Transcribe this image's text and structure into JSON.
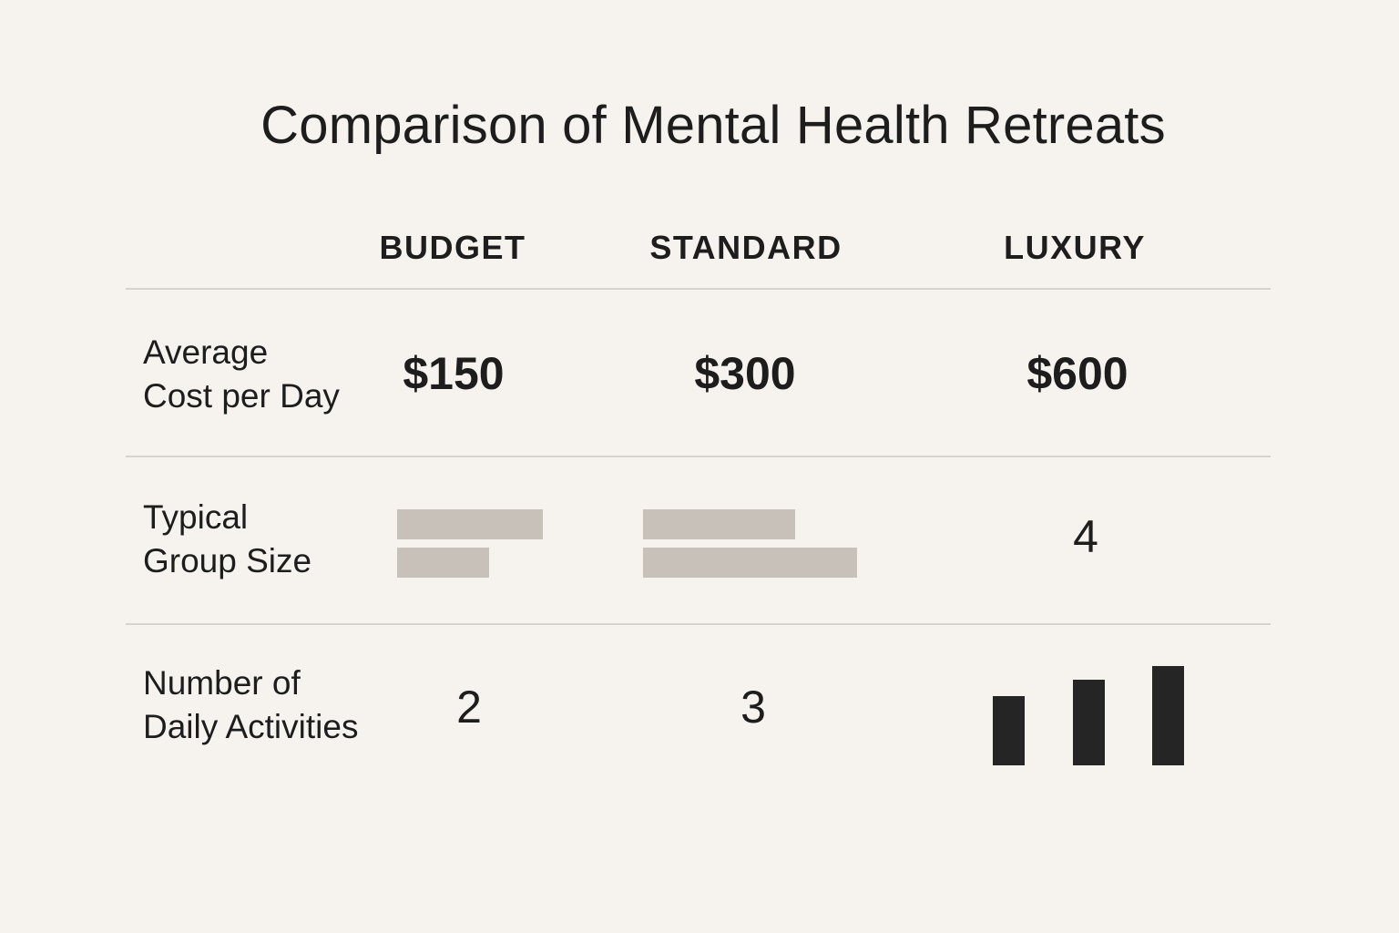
{
  "chart_data": {
    "type": "table",
    "title": "Comparison of Mental Health Retreats",
    "columns": [
      "BUDGET",
      "STANDARD",
      "LUXURY"
    ],
    "rows": [
      {
        "label_lines": [
          "Average",
          "Cost per Day"
        ],
        "values": [
          "$150",
          "$300",
          "$600"
        ]
      },
      {
        "label_lines": [
          "Typical",
          "Group Size"
        ],
        "values": [
          null,
          null,
          "4"
        ],
        "bar_graphics": {
          "BUDGET": [
            0.68,
            0.43
          ],
          "STANDARD": [
            0.71,
            1.0
          ]
        }
      },
      {
        "label_lines": [
          "Number of",
          "Daily Activities"
        ],
        "values": [
          "2",
          "3",
          null
        ],
        "bar_graphics": {
          "LUXURY": [
            0.7,
            0.86,
            1.0
          ]
        }
      }
    ],
    "colors": {
      "background": "#f6f3ef",
      "text": "#1d1d1d",
      "rule": "#d6d2cd",
      "light_bar": "#c8c1ba",
      "dark_bar": "#252525"
    }
  }
}
